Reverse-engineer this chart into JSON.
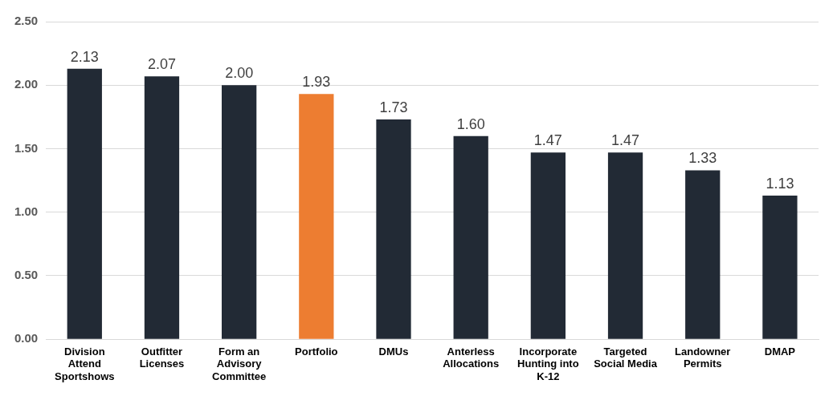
{
  "chart_data": {
    "type": "bar",
    "categories": [
      "Division Attend Sportshows",
      "Outfitter Licenses",
      "Form an Advisory Committee",
      "Portfolio",
      "DMUs",
      "Anterless Allocations",
      "Incorporate Hunting into K-12",
      "Targeted Social Media",
      "Landowner Permits",
      "DMAP"
    ],
    "values": [
      2.13,
      2.07,
      2.0,
      1.93,
      1.73,
      1.6,
      1.47,
      1.47,
      1.33,
      1.13
    ],
    "value_labels": [
      "2.13",
      "2.07",
      "2.00",
      "1.93",
      "1.73",
      "1.60",
      "1.47",
      "1.47",
      "1.33",
      "1.13"
    ],
    "colors": [
      "#222a35",
      "#222a35",
      "#222a35",
      "#ed7d31",
      "#222a35",
      "#222a35",
      "#222a35",
      "#222a35",
      "#222a35",
      "#222a35"
    ],
    "ylim": [
      0,
      2.5
    ],
    "yticks": [
      {
        "value": 0,
        "label": "0.00"
      },
      {
        "value": 0.5,
        "label": "0.50"
      },
      {
        "value": 1,
        "label": "1.00"
      },
      {
        "value": 1.5,
        "label": "1.50"
      },
      {
        "value": 2,
        "label": "2.00"
      },
      {
        "value": 2.5,
        "label": "2.50"
      }
    ],
    "grid": "y",
    "legend": false
  }
}
